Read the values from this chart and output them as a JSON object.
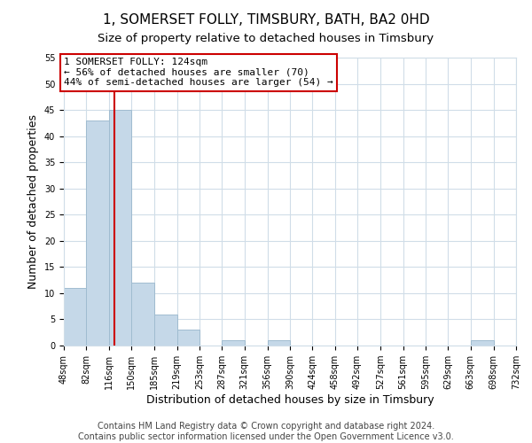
{
  "title": "1, SOMERSET FOLLY, TIMSBURY, BATH, BA2 0HD",
  "subtitle": "Size of property relative to detached houses in Timsbury",
  "xlabel": "Distribution of detached houses by size in Timsbury",
  "ylabel": "Number of detached properties",
  "bar_edges": [
    48,
    82,
    116,
    150,
    185,
    219,
    253,
    287,
    321,
    356,
    390,
    424,
    458,
    492,
    527,
    561,
    595,
    629,
    663,
    698,
    732
  ],
  "bar_heights": [
    11,
    43,
    45,
    12,
    6,
    3,
    0,
    1,
    0,
    1,
    0,
    0,
    0,
    0,
    0,
    0,
    0,
    0,
    1,
    0
  ],
  "bar_color": "#c5d8e8",
  "bar_edge_color": "#a0bcd0",
  "property_line_x": 124,
  "property_line_color": "#cc0000",
  "annotation_box_color": "#cc0000",
  "annotation_text_line1": "1 SOMERSET FOLLY: 124sqm",
  "annotation_text_line2": "← 56% of detached houses are smaller (70)",
  "annotation_text_line3": "44% of semi-detached houses are larger (54) →",
  "ylim": [
    0,
    55
  ],
  "yticks": [
    0,
    5,
    10,
    15,
    20,
    25,
    30,
    35,
    40,
    45,
    50,
    55
  ],
  "tick_labels": [
    "48sqm",
    "82sqm",
    "116sqm",
    "150sqm",
    "185sqm",
    "219sqm",
    "253sqm",
    "287sqm",
    "321sqm",
    "356sqm",
    "390sqm",
    "424sqm",
    "458sqm",
    "492sqm",
    "527sqm",
    "561sqm",
    "595sqm",
    "629sqm",
    "663sqm",
    "698sqm",
    "732sqm"
  ],
  "footer_line1": "Contains HM Land Registry data © Crown copyright and database right 2024.",
  "footer_line2": "Contains public sector information licensed under the Open Government Licence v3.0.",
  "background_color": "#ffffff",
  "grid_color": "#d0dde8",
  "title_fontsize": 11,
  "subtitle_fontsize": 9.5,
  "axis_label_fontsize": 9,
  "tick_fontsize": 7,
  "annotation_fontsize": 8,
  "footer_fontsize": 7
}
